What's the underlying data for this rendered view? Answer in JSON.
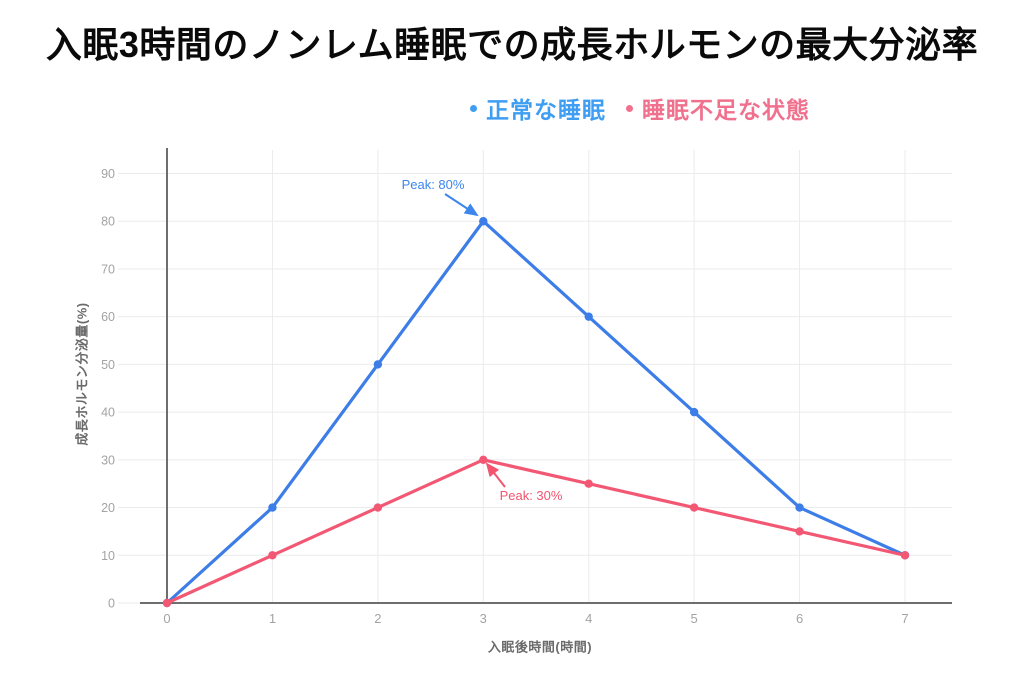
{
  "page": {
    "background": "#ffffff"
  },
  "colors": {
    "title": "#0a0a0a",
    "axis": "#6e6e6e",
    "grid": "#ebebeb",
    "tick_label": "#a3a3a3",
    "axis_title": "#6b6b6b"
  },
  "chart_data": {
    "type": "line",
    "title": "入眠3時間のノンレム睡眠での成長ホルモンの最大分泌率",
    "xlabel": "入眠後時間(時間)",
    "ylabel": "成長ホルモン分泌量(%)",
    "x": [
      0,
      1,
      2,
      3,
      4,
      5,
      6,
      7
    ],
    "xticks": [
      "0",
      "1",
      "2",
      "3",
      "4",
      "5",
      "6",
      "7"
    ],
    "yticks": [
      0,
      10,
      20,
      30,
      40,
      50,
      60,
      70,
      80,
      90
    ],
    "xlim": [
      0,
      7.45
    ],
    "ylim": [
      0,
      95
    ],
    "grid": true,
    "legend_position": "top-center",
    "series": [
      {
        "name": "正常な睡眠",
        "color": "#3c7de8",
        "legend_color": "#3f9ef2",
        "values": [
          0,
          20,
          50,
          80,
          60,
          40,
          20,
          10
        ]
      },
      {
        "name": "睡眠不足な状態",
        "color": "#f25873",
        "legend_color": "#f0718e",
        "values": [
          0,
          10,
          20,
          30,
          25,
          20,
          15,
          10
        ]
      }
    ],
    "annotations": [
      {
        "text": "Peak: 80%",
        "color": "#3c86ec",
        "x": 3,
        "y": 80
      },
      {
        "text": "Peak: 30%",
        "color": "#f2556e",
        "x": 3,
        "y": 30
      }
    ]
  }
}
